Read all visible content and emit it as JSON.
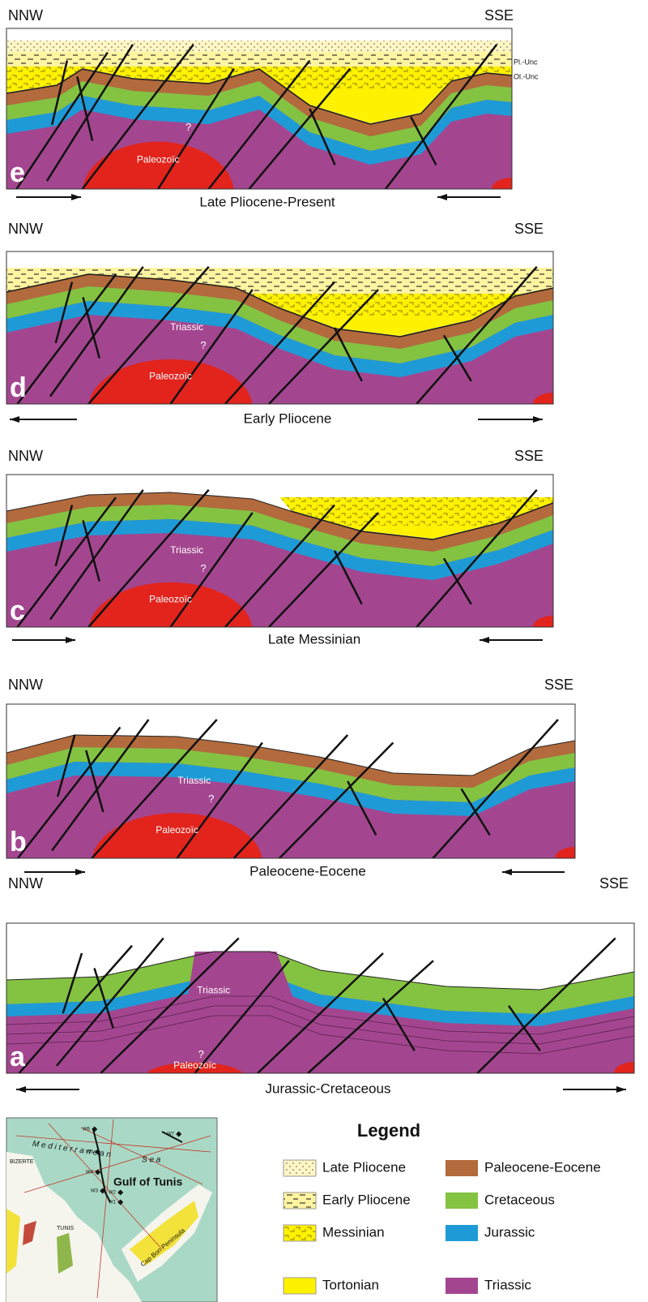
{
  "panels": [
    {
      "letter": "e",
      "left_label": "NNW",
      "right_label": "SSE",
      "stage": "Late Pliocene-Present",
      "question": "?",
      "paleozoic": "Paleozoïc",
      "unconformity_1": "Pl.-Unc",
      "unconformity_2": "Ol.-Unc"
    },
    {
      "letter": "d",
      "left_label": "NNW",
      "right_label": "SSE",
      "stage": "Early Pliocene",
      "triassic": "Triassic",
      "question": "?",
      "paleozoic": "Paleozoïc"
    },
    {
      "letter": "c",
      "left_label": "NNW",
      "right_label": "SSE",
      "stage": "Late Messinian",
      "triassic": "Triassic",
      "question": "?",
      "paleozoic": "Paleozoïc"
    },
    {
      "letter": "b",
      "left_label": "NNW",
      "right_label": "SSE",
      "stage": "Paleocene-Eocene",
      "triassic": "Triassic",
      "question": "?",
      "paleozoic": "Paleozoïc"
    },
    {
      "letter": "a",
      "left_label": "NNW",
      "right_label": "SSE",
      "stage": "Jurassic-Cretaceous",
      "triassic": "Triassic",
      "question": "?",
      "paleozoic": "Paleozoïc"
    }
  ],
  "map": {
    "sea_1": "M e d i t e r r a n e a n",
    "sea_2": "S e a",
    "gulf": "Gulf of Tunis",
    "bizerte": "BIZERTE",
    "tunis": "TUNIS",
    "cap_bon": "Cap Bon Peninsula",
    "wells": [
      "W6",
      "W7",
      "W5",
      "W4",
      "W3",
      "W2",
      "W1"
    ]
  },
  "legend": {
    "title": "Legend",
    "items": [
      "Late Pliocene",
      "Early Pliocene",
      "Messinian",
      "Tortonian",
      "Paleocene-Eocene",
      "Cretaceous",
      "Jurassic",
      "Triassic"
    ]
  }
}
